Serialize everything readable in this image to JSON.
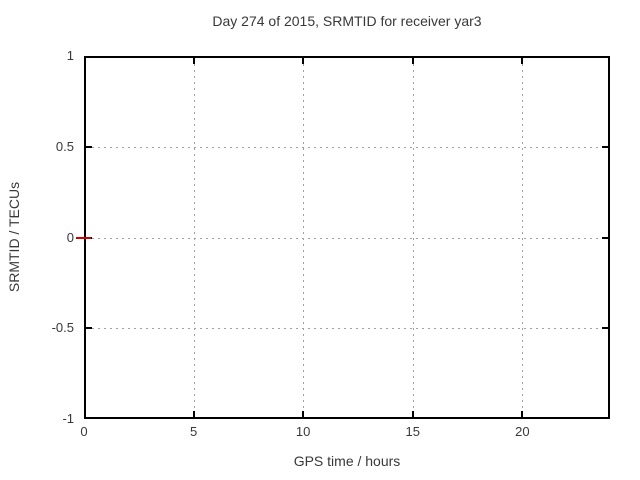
{
  "chart_data": {
    "type": "line",
    "title": "Day 274 of 2015, SRMTID for receiver yar3",
    "xlabel": "GPS time / hours",
    "ylabel": "SRMTID / TECUs",
    "xlim": [
      0,
      24
    ],
    "ylim": [
      -1,
      1
    ],
    "xticks": [
      0,
      5,
      10,
      15,
      20
    ],
    "yticks": [
      -1,
      -0.5,
      0,
      0.5,
      1
    ],
    "grid": true,
    "grid_style": "dotted",
    "legend": "none",
    "background": "#ffffff",
    "axis_color": "#000000",
    "grid_color": "#a0a0a0",
    "text_color": "#383838",
    "series": [
      {
        "name": "SRMTID",
        "color": "#d00000",
        "style": "dash-marker",
        "points": [
          [
            0,
            0
          ]
        ]
      }
    ]
  }
}
